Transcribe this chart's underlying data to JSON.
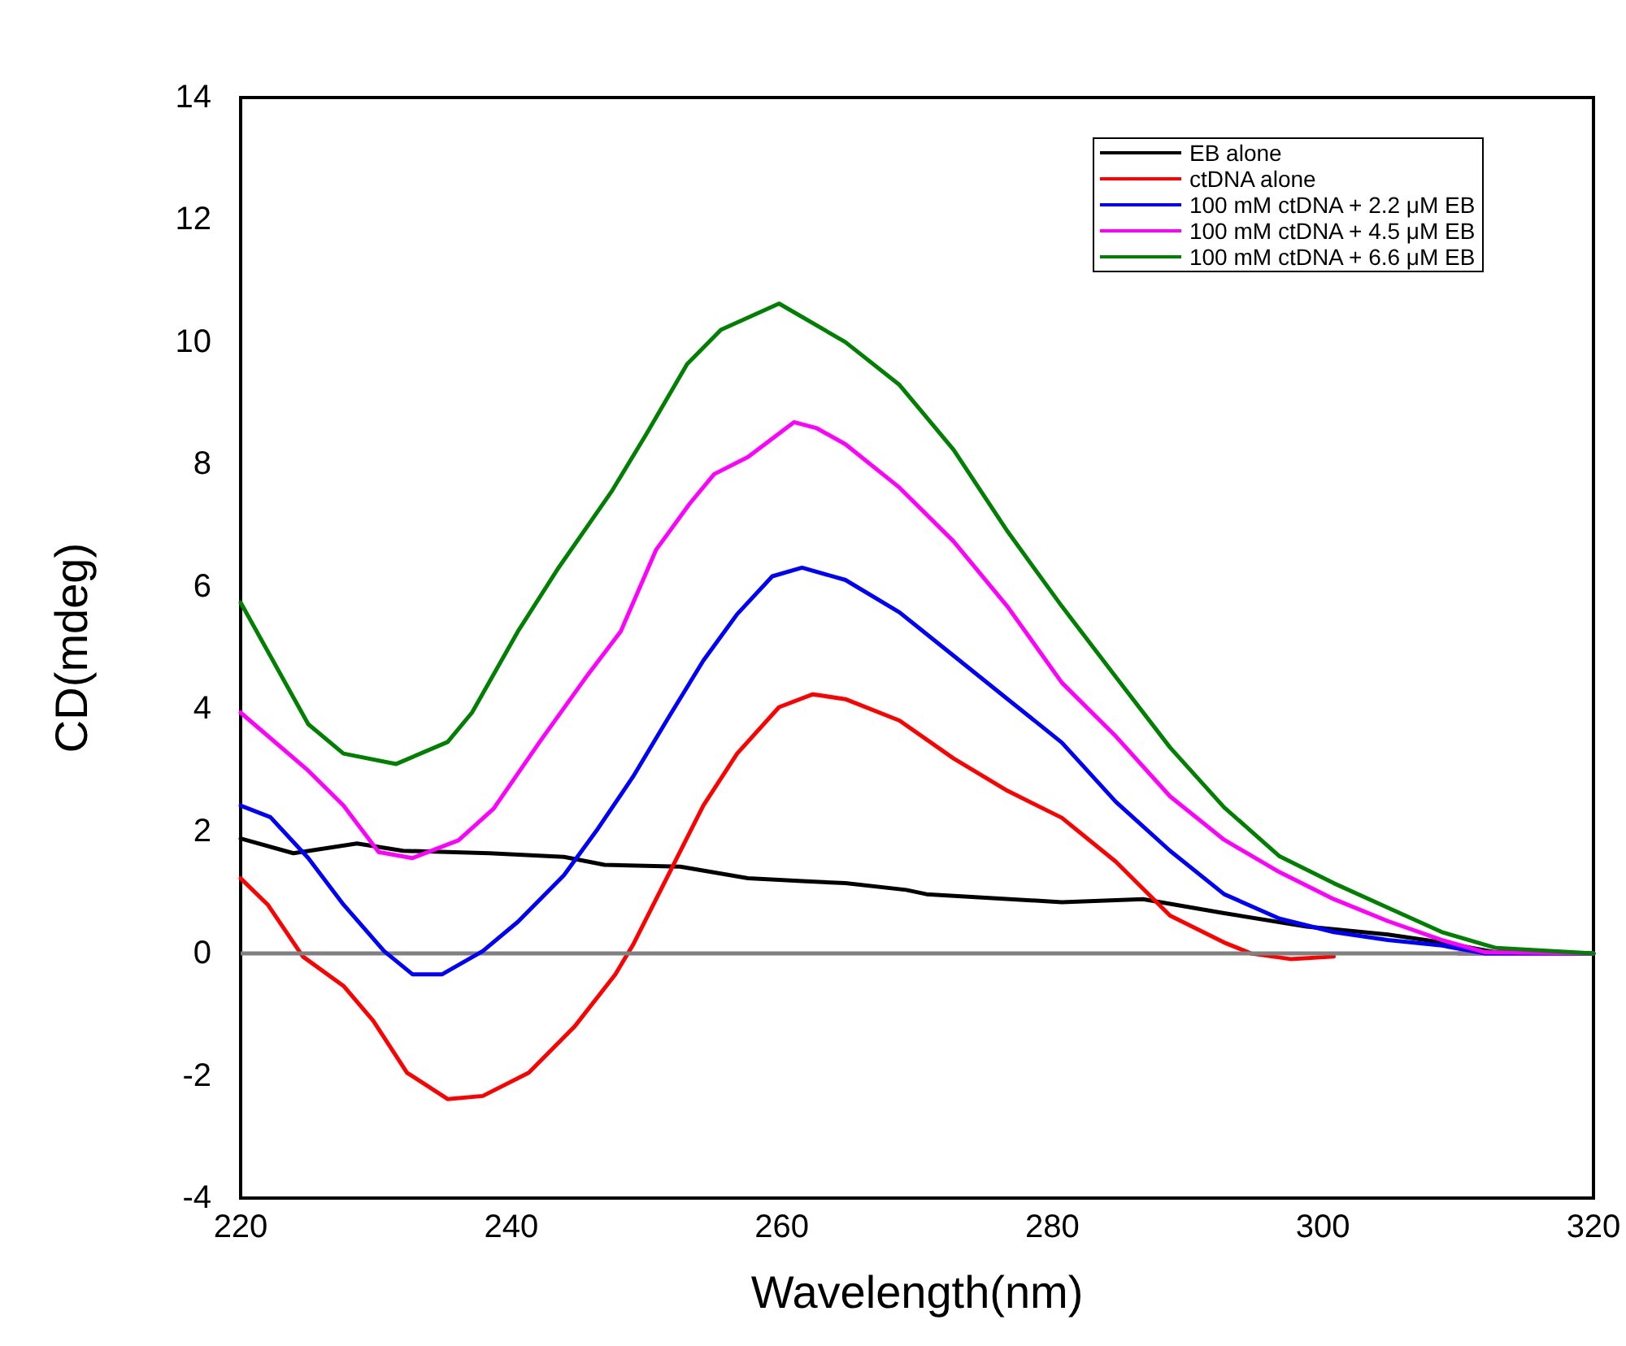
{
  "chart_data": {
    "type": "line",
    "xlabel": "Wavelength(nm)",
    "ylabel": "CD(mdeg)",
    "xlim": [
      220,
      320
    ],
    "xticks": [
      220,
      240,
      260,
      280,
      300,
      320
    ],
    "ylim": [
      -4,
      14
    ],
    "yticks": [
      -4,
      -2,
      0,
      2,
      4,
      6,
      8,
      10,
      12,
      14
    ],
    "grid": false,
    "legend": "top right",
    "marker": "none",
    "line_style": "solid",
    "ref_lines": [
      {
        "axis": "y",
        "value": 0,
        "color": "#808080"
      }
    ],
    "series": [
      {
        "name": "EB alone",
        "color": "#000000",
        "x": [
          220,
          223.9,
          228.6,
          232,
          238.4,
          243.9,
          246.9,
          252.5,
          257.5,
          261.8,
          264.7,
          269.2,
          270.7,
          280.7,
          286.7,
          292.7,
          298.8,
          304.8,
          308.8,
          312.8,
          320
        ],
        "values": [
          1.88,
          1.64,
          1.8,
          1.68,
          1.64,
          1.58,
          1.45,
          1.42,
          1.23,
          1.18,
          1.15,
          1.04,
          0.97,
          0.84,
          0.89,
          0.66,
          0.44,
          0.31,
          0.18,
          0.02,
          0
        ]
      },
      {
        "name": "ctDNA alone",
        "color": "#ff0000",
        "x": [
          220,
          222,
          224.6,
          227.6,
          229.8,
          232.3,
          235.3,
          237.9,
          241.3,
          244.7,
          247.7,
          249,
          251.6,
          254.2,
          256.7,
          259.8,
          262.3,
          264.7,
          268.7,
          272.7,
          276.7,
          280.7,
          284.7,
          288.7,
          292.7,
          294.7,
          297.6,
          300.8,
          305,
          310,
          320
        ],
        "values": [
          1.23,
          0.8,
          -0.05,
          -0.53,
          -1.1,
          -1.95,
          -2.38,
          -2.33,
          -1.95,
          -1.19,
          -0.34,
          0.14,
          1.28,
          2.42,
          3.27,
          4.03,
          4.24,
          4.16,
          3.81,
          3.19,
          2.66,
          2.22,
          1.5,
          0.62,
          0.18,
          0,
          -0.09,
          -0.05,
          null,
          0,
          0
        ]
      },
      {
        "name": "100 mM ctDNA + 2.2 μM EB",
        "color": "#0000ff",
        "x": [
          220,
          222.2,
          225,
          227.6,
          230.6,
          232.7,
          234.9,
          237.9,
          240.5,
          243.9,
          246.4,
          249,
          251.6,
          254.2,
          256.7,
          259.3,
          261.5,
          264.7,
          268.7,
          272.7,
          276.7,
          280.7,
          284.7,
          288.7,
          292.7,
          296.8,
          300.8,
          304.8,
          308.8,
          312,
          320
        ],
        "values": [
          2.42,
          2.23,
          1.56,
          0.8,
          0.04,
          -0.34,
          -0.34,
          0.04,
          0.52,
          1.28,
          2.04,
          2.89,
          3.85,
          4.79,
          5.55,
          6.17,
          6.31,
          6.11,
          5.58,
          4.87,
          4.16,
          3.45,
          2.48,
          1.68,
          0.97,
          0.57,
          0.35,
          0.22,
          0.13,
          0,
          0
        ]
      },
      {
        "name": "100 mM ctDNA + 4.5 μM EB",
        "color": "#ff00ff",
        "x": [
          220,
          225,
          227.6,
          230.2,
          232.7,
          236.1,
          238.7,
          242.1,
          245.5,
          248.1,
          250.7,
          253.2,
          255,
          257.5,
          260.9,
          262.6,
          264.7,
          268.7,
          272.7,
          276.7,
          280.7,
          284.7,
          288.7,
          292.7,
          296.8,
          300.8,
          304.8,
          308.8,
          312,
          320
        ],
        "values": [
          3.94,
          2.99,
          2.42,
          1.66,
          1.56,
          1.85,
          2.37,
          3.46,
          4.51,
          5.27,
          6.6,
          7.36,
          7.84,
          8.12,
          8.69,
          8.59,
          8.33,
          7.62,
          6.74,
          5.67,
          4.43,
          3.55,
          2.57,
          1.86,
          1.33,
          0.89,
          0.53,
          0.22,
          0.02,
          0
        ]
      },
      {
        "name": "100 mM ctDNA + 6.6 μM EB",
        "color": "#008000",
        "x": [
          220,
          225,
          227.6,
          231.5,
          235.3,
          237.1,
          240.5,
          243.5,
          247.4,
          250,
          253,
          255.5,
          259.8,
          264.7,
          268.7,
          272.7,
          276.7,
          280.7,
          284.7,
          288.7,
          292.7,
          296.8,
          300.8,
          304.8,
          308.8,
          312.8,
          320
        ],
        "values": [
          5.74,
          3.75,
          3.27,
          3.1,
          3.46,
          3.94,
          5.27,
          6.31,
          7.55,
          8.5,
          9.64,
          10.2,
          10.63,
          10.0,
          9.3,
          8.24,
          6.9,
          5.68,
          4.52,
          3.37,
          2.39,
          1.59,
          1.15,
          0.75,
          0.35,
          0.09,
          0
        ]
      }
    ]
  }
}
